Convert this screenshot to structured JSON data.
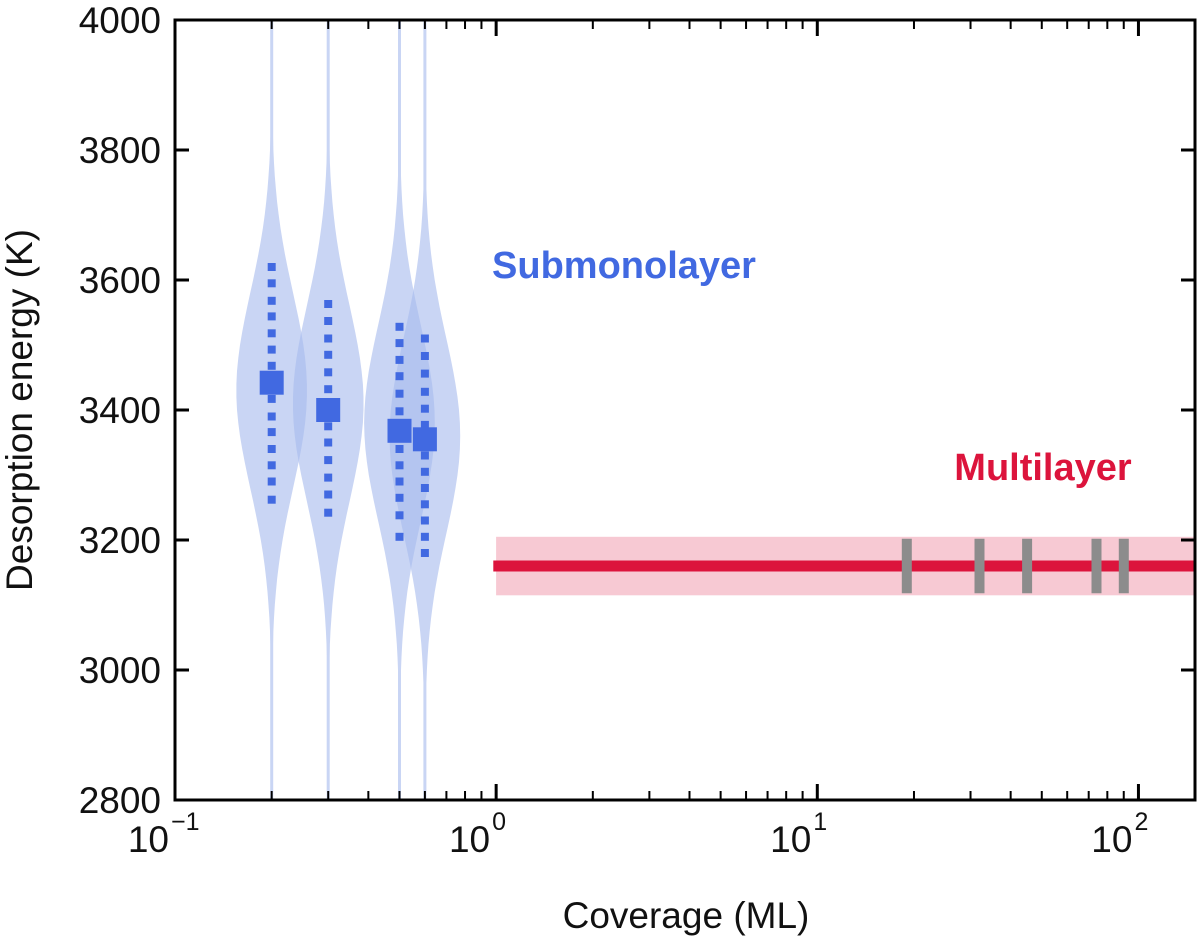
{
  "chart_data": {
    "type": "scatter",
    "title": "",
    "xlabel": "Coverage (ML)",
    "ylabel": "Desorption energy (K)",
    "x_scale": "log",
    "xlim": [
      0.1,
      150
    ],
    "ylim": [
      2800,
      4000
    ],
    "x_ticks": [
      {
        "value": 0.1,
        "base": "10",
        "exp": "−1"
      },
      {
        "value": 1,
        "base": "10",
        "exp": "0"
      },
      {
        "value": 10,
        "base": "10",
        "exp": "1"
      },
      {
        "value": 100,
        "base": "10",
        "exp": "2"
      }
    ],
    "y_ticks": [
      2800,
      3000,
      3200,
      3400,
      3600,
      3800,
      4000
    ],
    "grid": false,
    "annotations": [
      {
        "text": "Submonolayer",
        "color": "#4169e1"
      },
      {
        "text": "Multilayer",
        "color": "#dc143c"
      }
    ],
    "submonolayer": {
      "color": "#4169e1",
      "violin_color": "#a8bcee",
      "points": [
        {
          "x": 0.2,
          "mean": 3442,
          "dots": [
            3620,
            3595,
            3568,
            3544,
            3518,
            3493,
            3468,
            3417,
            3390,
            3366,
            3340,
            3315,
            3290,
            3262
          ],
          "violin_center": 3430,
          "violin_width": 0.11
        },
        {
          "x": 0.3,
          "mean": 3400,
          "dots": [
            3563,
            3537,
            3510,
            3485,
            3458,
            3432,
            3375,
            3350,
            3323,
            3296,
            3270,
            3242
          ],
          "violin_center": 3410,
          "violin_width": 0.11
        },
        {
          "x": 0.5,
          "mean": 3368,
          "dots": [
            3528,
            3503,
            3477,
            3452,
            3425,
            3398,
            3340,
            3315,
            3290,
            3265,
            3238,
            3205
          ],
          "violin_center": 3380,
          "violin_width": 0.11
        },
        {
          "x": 0.6,
          "mean": 3355,
          "dots": [
            3510,
            3483,
            3456,
            3428,
            3402,
            3377,
            3330,
            3305,
            3280,
            3255,
            3230,
            3205,
            3180
          ],
          "violin_center": 3360,
          "violin_width": 0.11
        }
      ]
    },
    "multilayer": {
      "color": "#dc143c",
      "band_color": "#f7c9d3",
      "value": 3160,
      "band": [
        3115,
        3205
      ],
      "x_range": [
        1,
        150
      ],
      "line_start": 0.98,
      "marker_color": "#8c8c8c",
      "markers_x": [
        19,
        32,
        45,
        74,
        90
      ]
    }
  }
}
